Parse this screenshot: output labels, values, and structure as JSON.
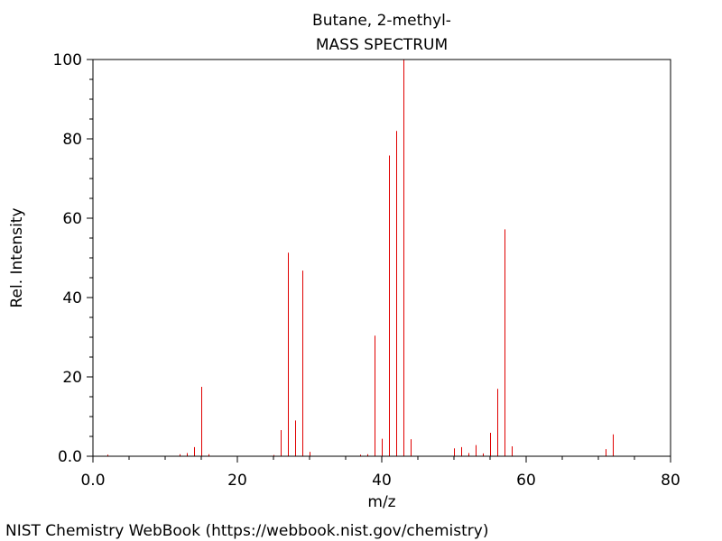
{
  "chart_data": {
    "type": "bar",
    "title": "Butane, 2-methyl-",
    "subtitle": "MASS SPECTRUM",
    "xlabel": "m/z",
    "ylabel": "Rel. Intensity",
    "xlim": [
      0,
      80
    ],
    "ylim": [
      0,
      100
    ],
    "x_ticks": [
      0.0,
      20,
      40,
      60,
      80
    ],
    "x_tick_labels": [
      "0.0",
      "20",
      "40",
      "60",
      "80"
    ],
    "y_ticks": [
      0.0,
      20,
      40,
      60,
      80,
      100
    ],
    "y_tick_labels": [
      "0.0",
      "20",
      "40",
      "60",
      "80",
      "100"
    ],
    "grid": false,
    "bar_color": "#e00000",
    "x": [
      2,
      12,
      13,
      14,
      15,
      16,
      25,
      26,
      27,
      28,
      29,
      30,
      37,
      38,
      39,
      40,
      41,
      42,
      43,
      44,
      50,
      51,
      52,
      53,
      54,
      55,
      56,
      57,
      58,
      71,
      72
    ],
    "values": [
      0.4,
      0.5,
      0.8,
      2.3,
      17.5,
      0.5,
      0.3,
      6.6,
      51.3,
      9.0,
      46.8,
      1.1,
      0.4,
      0.5,
      30.4,
      4.4,
      75.8,
      82.0,
      100.0,
      4.3,
      2.0,
      2.3,
      0.8,
      2.8,
      0.7,
      5.9,
      17.0,
      57.2,
      2.5,
      1.8,
      5.5
    ]
  },
  "footer": {
    "source": "NIST Chemistry WebBook (https://webbook.nist.gov/chemistry)"
  }
}
